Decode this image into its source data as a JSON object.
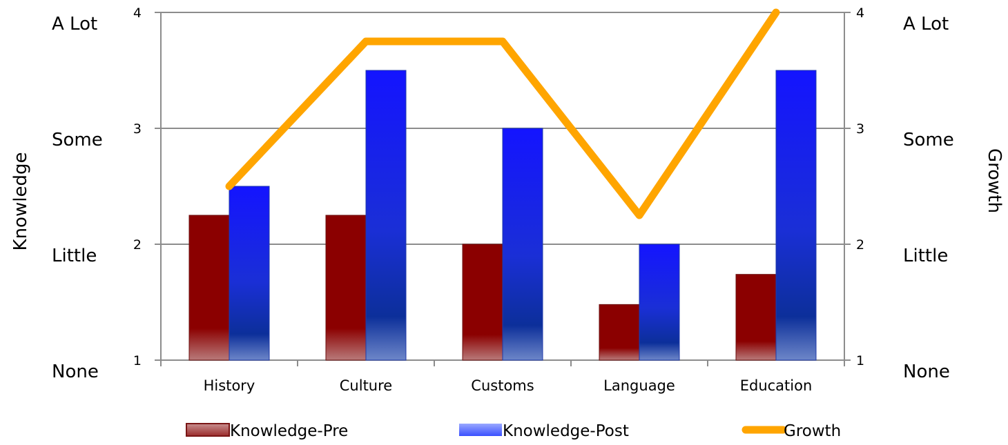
{
  "chart_data": {
    "type": "bar",
    "categories": [
      "History",
      "Culture",
      "Customs",
      "Language",
      "Education"
    ],
    "series": [
      {
        "name": "Knowledge-Pre",
        "type": "bar",
        "axis": "left",
        "color": "#8b0000",
        "values": [
          2.25,
          2.25,
          2.0,
          1.48,
          1.74
        ]
      },
      {
        "name": "Knowledge-Post",
        "type": "bar",
        "axis": "left",
        "color": "#1a1aff",
        "values": [
          2.5,
          3.5,
          3.0,
          2.0,
          3.5
        ]
      },
      {
        "name": "Growth",
        "type": "line",
        "axis": "right",
        "color": "#ffa500",
        "values": [
          2.5,
          3.75,
          3.75,
          2.25,
          4.0
        ]
      }
    ],
    "ylabel": "Knowledge",
    "ylabel_right": "Growth",
    "ylim": [
      1,
      4
    ],
    "ylim_right": [
      1,
      4
    ],
    "y_ticks": [
      "1",
      "2",
      "3",
      "4"
    ],
    "y_tick_values": [
      1,
      2,
      3,
      4
    ],
    "level_labels": [
      "None",
      "Little",
      "Some",
      "A Lot"
    ],
    "grid": true,
    "legend_position": "bottom"
  }
}
